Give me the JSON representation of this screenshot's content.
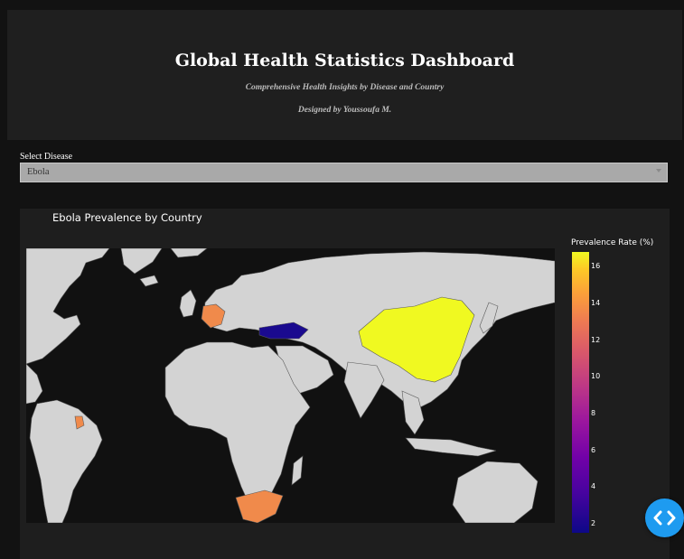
{
  "header": {
    "title": "Global Health Statistics Dashboard",
    "subtitle": "Comprehensive Health Insights by Disease and Country",
    "credit": "Designed by Youssoufa M."
  },
  "filter": {
    "label": "Select Disease",
    "selected": "Ebola"
  },
  "chart_data": {
    "type": "choropleth",
    "title": "Ebola Prevalence by Country",
    "legend_title": "Prevalence Rate (%)",
    "colorscale": [
      "#0d0887",
      "#7201a8",
      "#bd3786",
      "#ed7953",
      "#f0f921"
    ],
    "range": [
      1.5,
      16.8
    ],
    "ticks": [
      2,
      4,
      6,
      8,
      10,
      12,
      14,
      16
    ],
    "regions": [
      {
        "country": "China",
        "value": 16.7
      },
      {
        "country": "France",
        "value": 13.5
      },
      {
        "country": "South Africa",
        "value": 13.3
      },
      {
        "country": "French Guiana",
        "value": 13.3
      },
      {
        "country": "Turkey",
        "value": 1.8
      }
    ]
  },
  "icons": {
    "fab": "code-brackets-icon"
  },
  "colors": {
    "background": "#121212",
    "panel": "#1f1f1f",
    "land": "#d3d3d3",
    "ocean": "#111111",
    "accent": "#1e9bf0"
  }
}
